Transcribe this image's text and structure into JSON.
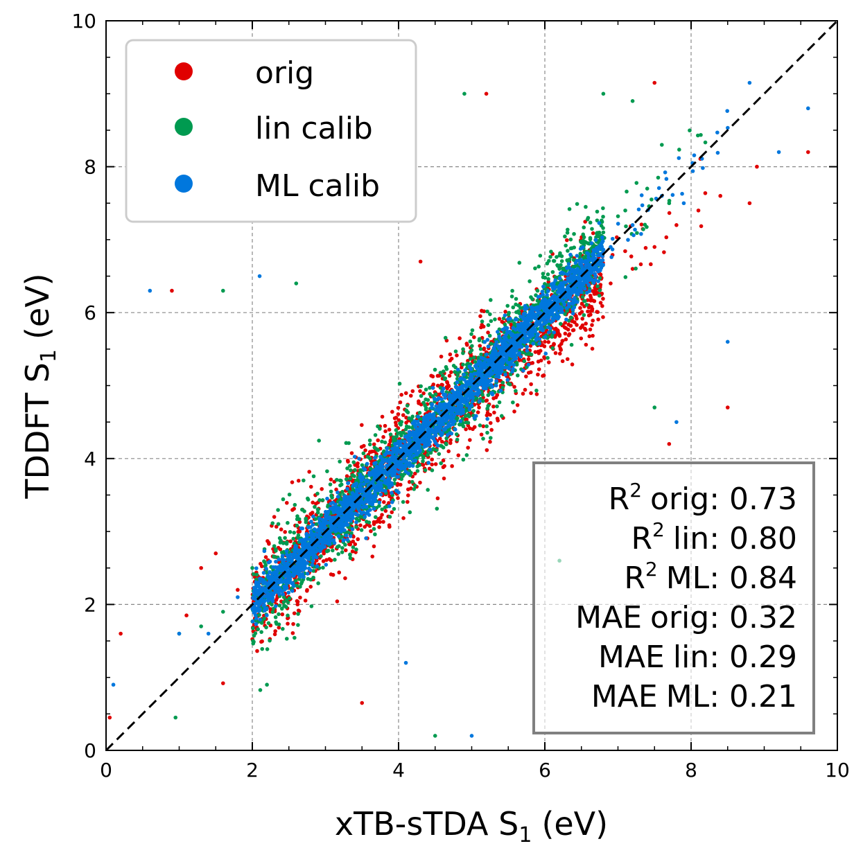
{
  "chart_data": {
    "type": "scatter",
    "xlabel": {
      "main": "xTB-sTDA S",
      "sub": "1",
      "unit": "(eV)"
    },
    "ylabel": {
      "main": "TDDFT S",
      "sub": "1",
      "unit": "(eV)"
    },
    "xlim": [
      0,
      10
    ],
    "ylim": [
      0,
      10
    ],
    "xticks": [
      "0",
      "2",
      "4",
      "6",
      "8",
      "10"
    ],
    "yticks": [
      "0",
      "2",
      "4",
      "6",
      "8",
      "10"
    ],
    "grid": true,
    "reference_line": "y = x (dashed)",
    "legend": {
      "placement": "top-left",
      "entries": [
        {
          "label": "orig",
          "color": "#e00000"
        },
        {
          "label": "lin calib",
          "color": "#009a50"
        },
        {
          "label": "ML calib",
          "color": "#0077dd"
        }
      ]
    },
    "series": [
      {
        "name": "orig",
        "color": "#e00000",
        "description": "dense cloud along diagonal, shifted right at high energy",
        "points": [
          [
            1.1,
            1.85
          ],
          [
            1.3,
            2.5
          ],
          [
            1.5,
            2.7
          ],
          [
            1.8,
            2.2
          ],
          [
            2.1,
            2.3
          ],
          [
            2.3,
            3.2
          ],
          [
            2.6,
            2.4
          ],
          [
            2.9,
            3.4
          ],
          [
            3.2,
            3.1
          ],
          [
            3.5,
            3.6
          ],
          [
            3.9,
            4.3
          ],
          [
            4.2,
            4.0
          ],
          [
            4.5,
            4.4
          ],
          [
            4.8,
            4.6
          ],
          [
            5.1,
            4.7
          ],
          [
            5.4,
            5.0
          ],
          [
            5.7,
            5.2
          ],
          [
            6.0,
            5.6
          ],
          [
            6.3,
            6.0
          ],
          [
            6.6,
            6.1
          ],
          [
            6.9,
            6.4
          ],
          [
            7.2,
            6.6
          ],
          [
            7.5,
            6.9
          ],
          [
            7.8,
            7.2
          ],
          [
            8.1,
            7.4
          ],
          [
            8.4,
            7.6
          ],
          [
            8.8,
            7.5
          ],
          [
            8.9,
            8.0
          ],
          [
            9.6,
            8.2
          ],
          [
            8.5,
            4.7
          ],
          [
            7.7,
            4.2
          ],
          [
            3.5,
            0.65
          ],
          [
            1.6,
            0.92
          ],
          [
            0.05,
            0.45
          ],
          [
            0.2,
            1.6
          ],
          [
            5.2,
            9.0
          ],
          [
            7.5,
            9.15
          ],
          [
            4.3,
            6.7
          ],
          [
            0.9,
            6.3
          ]
        ]
      },
      {
        "name": "lin calib",
        "color": "#009a50",
        "description": "dense cloud along diagonal, slightly above line at high energy",
        "points": [
          [
            1.0,
            1.6
          ],
          [
            1.3,
            1.7
          ],
          [
            1.6,
            1.9
          ],
          [
            2.0,
            2.5
          ],
          [
            2.3,
            2.8
          ],
          [
            2.6,
            2.5
          ],
          [
            2.9,
            3.3
          ],
          [
            3.2,
            3.7
          ],
          [
            3.5,
            3.2
          ],
          [
            3.8,
            4.1
          ],
          [
            4.1,
            4.4
          ],
          [
            4.4,
            4.3
          ],
          [
            4.7,
            4.9
          ],
          [
            5.0,
            5.2
          ],
          [
            5.3,
            5.4
          ],
          [
            5.6,
            5.8
          ],
          [
            5.9,
            6.3
          ],
          [
            6.2,
            6.6
          ],
          [
            6.5,
            6.9
          ],
          [
            6.8,
            7.1
          ],
          [
            7.1,
            7.4
          ],
          [
            7.4,
            7.7
          ],
          [
            7.6,
            8.3
          ],
          [
            7.7,
            7.5
          ],
          [
            6.2,
            2.6
          ],
          [
            7.5,
            4.7
          ],
          [
            4.9,
            9.0
          ],
          [
            6.8,
            9.0
          ],
          [
            7.2,
            8.9
          ],
          [
            1.6,
            6.3
          ],
          [
            2.6,
            6.4
          ],
          [
            4.5,
            0.2
          ],
          [
            0.95,
            0.45
          ],
          [
            2.2,
            0.9
          ],
          [
            2.7,
            3.7
          ]
        ]
      },
      {
        "name": "ML calib",
        "color": "#0077dd",
        "description": "tightest cloud along diagonal",
        "points": [
          [
            1.0,
            1.6
          ],
          [
            1.4,
            1.6
          ],
          [
            1.8,
            2.1
          ],
          [
            2.1,
            2.2
          ],
          [
            2.4,
            2.5
          ],
          [
            2.7,
            2.8
          ],
          [
            3.0,
            3.0
          ],
          [
            3.3,
            3.4
          ],
          [
            3.6,
            3.6
          ],
          [
            3.9,
            3.9
          ],
          [
            4.2,
            4.2
          ],
          [
            4.5,
            4.5
          ],
          [
            4.8,
            4.8
          ],
          [
            5.1,
            5.1
          ],
          [
            5.4,
            5.4
          ],
          [
            5.7,
            5.7
          ],
          [
            6.0,
            6.0
          ],
          [
            6.3,
            6.3
          ],
          [
            6.6,
            6.6
          ],
          [
            6.9,
            6.9
          ],
          [
            7.2,
            7.2
          ],
          [
            7.6,
            7.6
          ],
          [
            7.9,
            7.5
          ],
          [
            9.2,
            8.2
          ],
          [
            9.6,
            8.8
          ],
          [
            8.8,
            9.15
          ],
          [
            8.5,
            5.6
          ],
          [
            0.1,
            0.9
          ],
          [
            0.6,
            6.3
          ],
          [
            5.0,
            0.2
          ],
          [
            4.1,
            1.2
          ],
          [
            2.1,
            6.5
          ],
          [
            7.8,
            4.5
          ]
        ]
      }
    ],
    "stats": [
      {
        "label": "R",
        "sup": "2",
        "name": "orig:",
        "value": "0.73"
      },
      {
        "label": "R",
        "sup": "2",
        "name": "lin:",
        "value": "0.80"
      },
      {
        "label": "R",
        "sup": "2",
        "name": "ML:",
        "value": "0.84"
      },
      {
        "label": "MAE",
        "sup": "",
        "name": "orig:",
        "value": "0.32"
      },
      {
        "label": "MAE",
        "sup": "",
        "name": "lin:",
        "value": "0.29"
      },
      {
        "label": "MAE",
        "sup": "",
        "name": "ML:",
        "value": "0.21"
      }
    ]
  }
}
